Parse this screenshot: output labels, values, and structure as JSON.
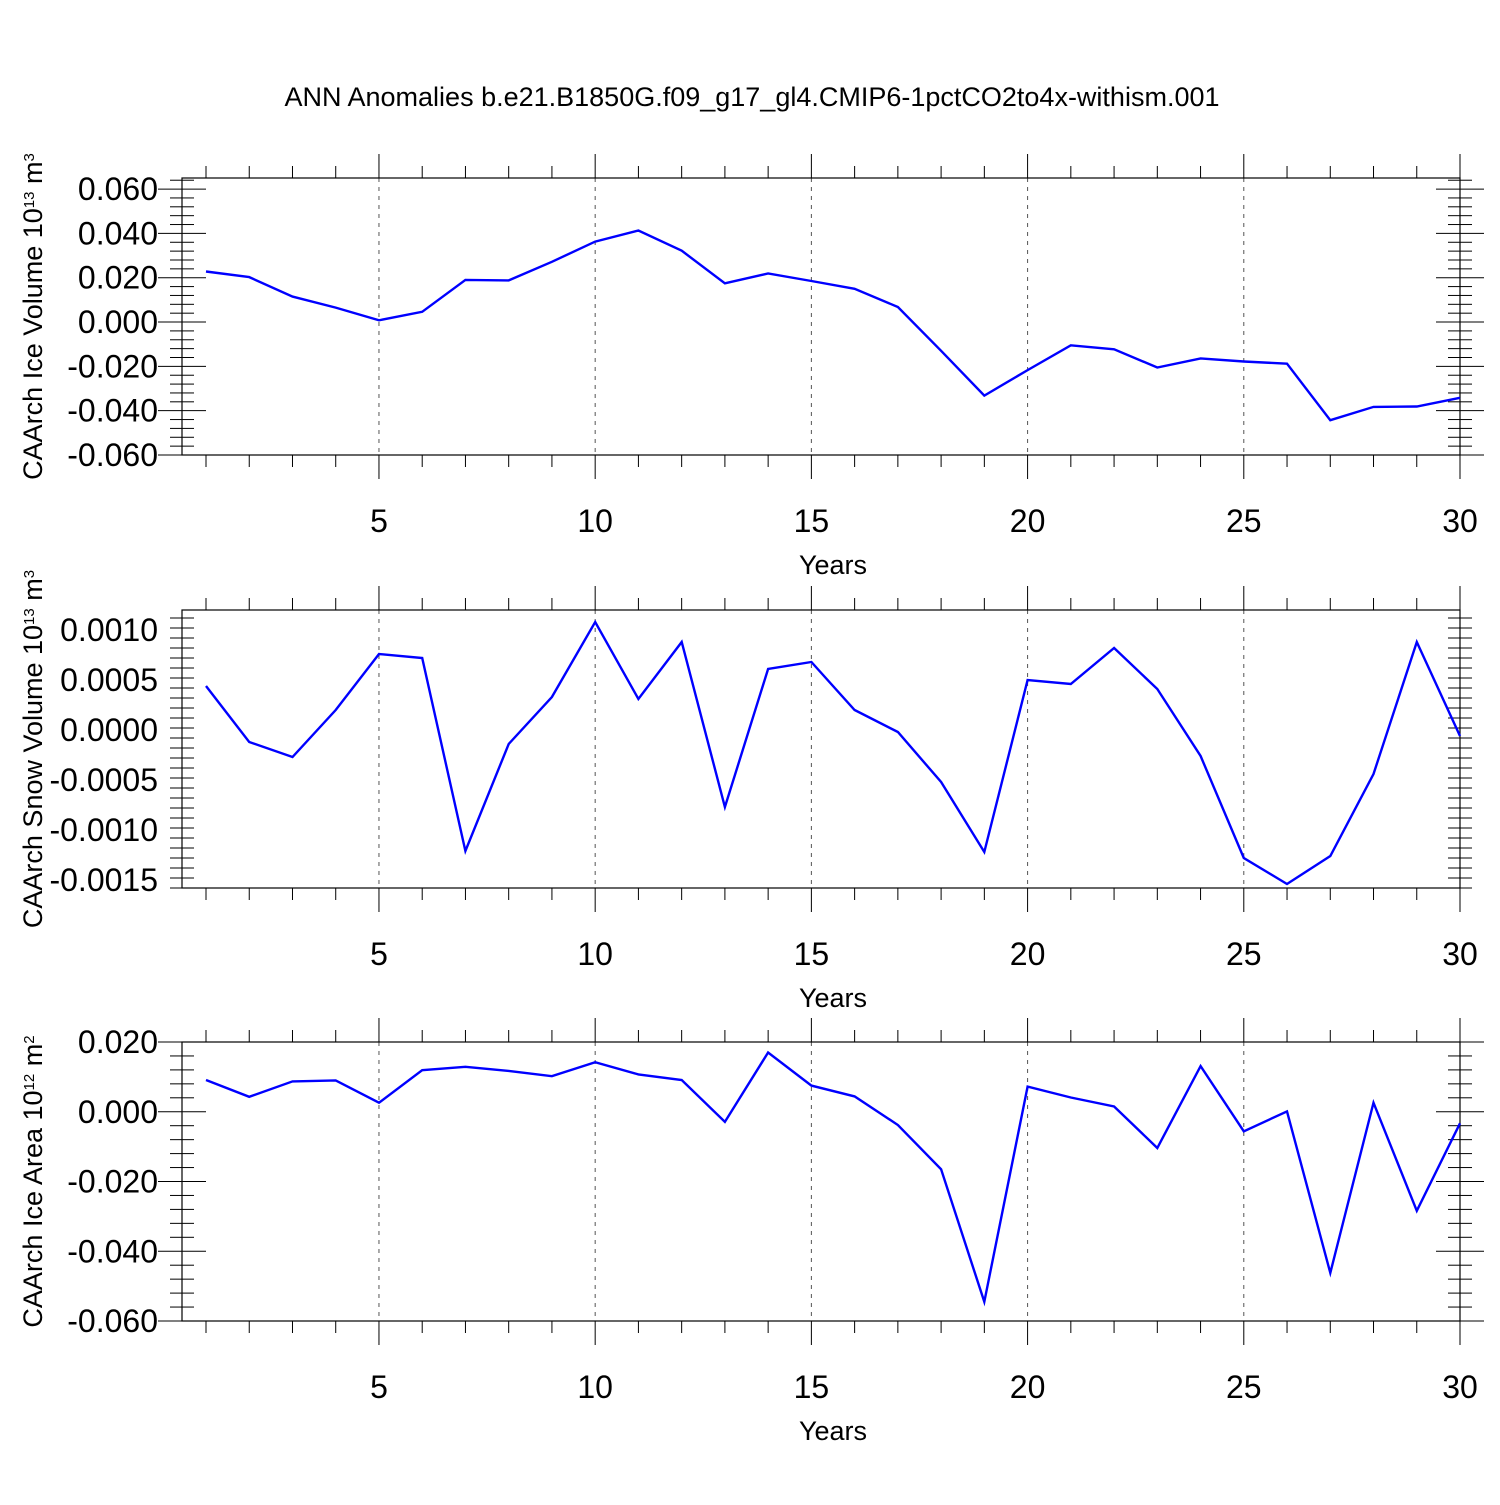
{
  "title": "ANN Anomalies b.e21.B1850G.f09_g17_gl4.CMIP6-1pctCO2to4x-withism.001",
  "colors": {
    "series": "#0000ff",
    "axis": "#000000",
    "grid": "#555555"
  },
  "chart_data": [
    {
      "type": "line",
      "xlabel": "Years",
      "ylabel": {
        "main": "CAArch Ice Volume 10",
        "exp": "13",
        "unit": " m",
        "unit_exp": "3"
      },
      "xlim": [
        1,
        30
      ],
      "ylim": [
        -0.06,
        0.065
      ],
      "xticks": [
        5,
        10,
        15,
        20,
        25,
        30
      ],
      "xtick_labels": [
        "5",
        "10",
        "15",
        "20",
        "25",
        "30"
      ],
      "yticks": [
        -0.06,
        -0.04,
        -0.02,
        0.0,
        0.02,
        0.04,
        0.06
      ],
      "ytick_labels": [
        "-0.060",
        "-0.040",
        "-0.020",
        "0.000",
        "0.020",
        "0.040",
        "0.060"
      ],
      "grid": "vertical dashed at major x ticks",
      "x": [
        1,
        2,
        3,
        4,
        5,
        6,
        7,
        8,
        9,
        10,
        11,
        12,
        13,
        14,
        15,
        16,
        17,
        18,
        19,
        20,
        21,
        22,
        23,
        24,
        25,
        26,
        27,
        28,
        29,
        30
      ],
      "values": [
        0.0228,
        0.0203,
        0.0115,
        0.0065,
        0.0008,
        0.0046,
        0.019,
        0.0188,
        0.0272,
        0.0363,
        0.0413,
        0.0322,
        0.0175,
        0.0219,
        0.0185,
        0.015,
        0.0068,
        -0.013,
        -0.0332,
        -0.0217,
        -0.0105,
        -0.0123,
        -0.0205,
        -0.0164,
        -0.0178,
        -0.0188,
        -0.0443,
        -0.0383,
        -0.0381,
        -0.0342
      ]
    },
    {
      "type": "line",
      "xlabel": "Years",
      "ylabel": {
        "main": "CAArch Snow Volume 10",
        "exp": "13",
        "unit": " m",
        "unit_exp": "3"
      },
      "xlim": [
        1,
        30
      ],
      "ylim": [
        -0.00158,
        0.0012
      ],
      "xticks": [
        5,
        10,
        15,
        20,
        25,
        30
      ],
      "xtick_labels": [
        "5",
        "10",
        "15",
        "20",
        "25",
        "30"
      ],
      "yticks": [
        -0.0015,
        -0.001,
        -0.0005,
        0.0,
        0.0005,
        0.001
      ],
      "ytick_labels": [
        "-0.0015",
        "-0.0010",
        "-0.0005",
        "0.0000",
        "0.0005",
        "0.0010"
      ],
      "grid": "vertical dashed at major x ticks",
      "x": [
        1,
        2,
        3,
        4,
        5,
        6,
        7,
        8,
        9,
        10,
        11,
        12,
        13,
        14,
        15,
        16,
        17,
        18,
        19,
        20,
        21,
        22,
        23,
        24,
        25,
        26,
        27,
        28,
        29,
        30
      ],
      "values": [
        0.00044,
        -0.00012,
        -0.00027,
        0.0002,
        0.00076,
        0.00072,
        -0.00121,
        -0.00014,
        0.00033,
        0.00108,
        0.00031,
        0.00088,
        -0.00077,
        0.00061,
        0.00068,
        0.0002,
        -2e-05,
        -0.00052,
        -0.00122,
        0.0005,
        0.00046,
        0.00082,
        0.00041,
        -0.00026,
        -0.00128,
        -0.00154,
        -0.00126,
        -0.00044,
        0.00088,
        -6e-05
      ]
    },
    {
      "type": "line",
      "xlabel": "Years",
      "ylabel": {
        "main": "CAArch Ice Area 10",
        "exp": "12",
        "unit": " m",
        "unit_exp": "2"
      },
      "xlim": [
        1,
        30
      ],
      "ylim": [
        -0.06,
        0.02
      ],
      "xticks": [
        5,
        10,
        15,
        20,
        25,
        30
      ],
      "xtick_labels": [
        "5",
        "10",
        "15",
        "20",
        "25",
        "30"
      ],
      "yticks": [
        -0.06,
        -0.04,
        -0.02,
        0.0,
        0.02
      ],
      "ytick_labels": [
        "-0.060",
        "-0.040",
        "-0.020",
        "0.000",
        "0.020"
      ],
      "grid": "vertical dashed at major x ticks",
      "x": [
        1,
        2,
        3,
        4,
        5,
        6,
        7,
        8,
        9,
        10,
        11,
        12,
        13,
        14,
        15,
        16,
        17,
        18,
        19,
        20,
        21,
        22,
        23,
        24,
        25,
        26,
        27,
        28,
        29,
        30
      ],
      "values": [
        0.0091,
        0.0043,
        0.0087,
        0.009,
        0.0026,
        0.0119,
        0.0129,
        0.0117,
        0.0102,
        0.0142,
        0.0107,
        0.0091,
        -0.0029,
        0.017,
        0.0075,
        0.0044,
        -0.0038,
        -0.0165,
        -0.0545,
        0.0072,
        0.0041,
        0.0015,
        -0.0104,
        0.0131,
        -0.0056,
        0.0001,
        -0.0462,
        0.0026,
        -0.0284,
        -0.0033
      ]
    }
  ]
}
